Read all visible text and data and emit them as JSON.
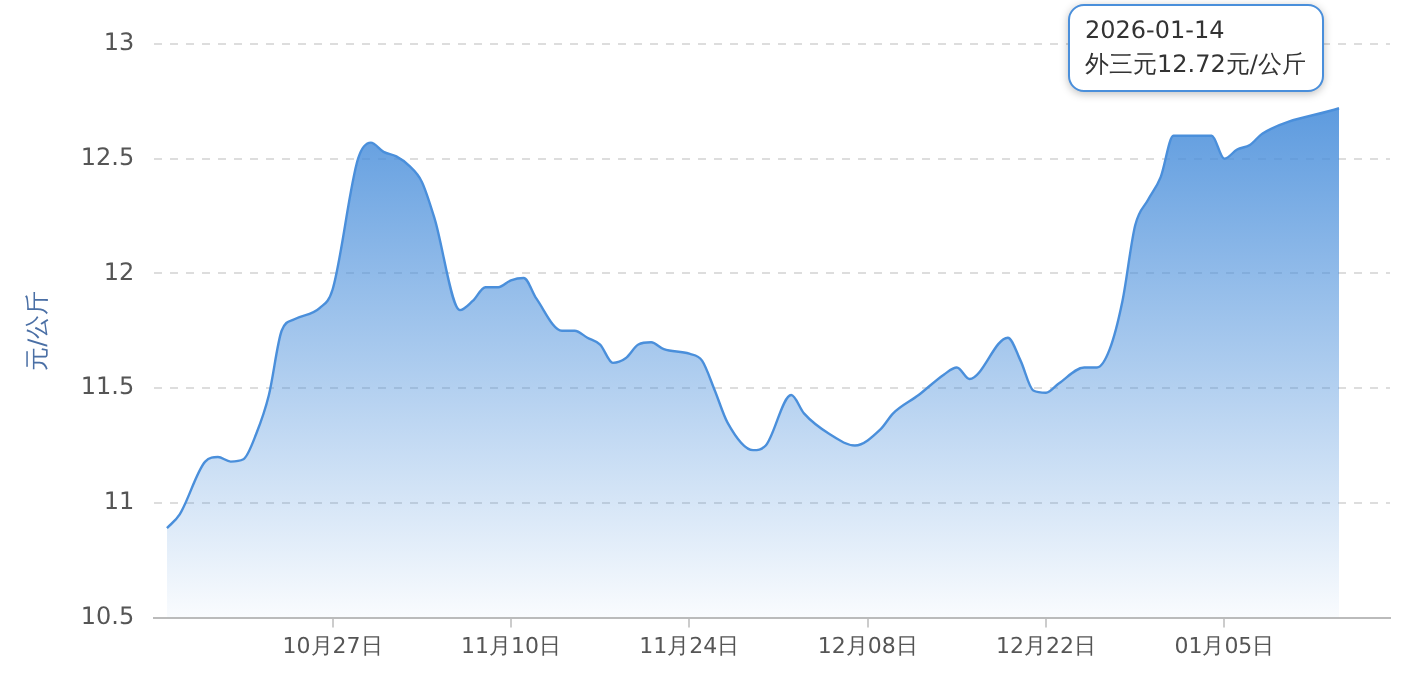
{
  "chart_data": {
    "type": "area",
    "ylabel": "元/公斤",
    "annotations": [
      {
        "text": "2026-01-14\n外三元12.72元/公斤",
        "x": "2026-01-14",
        "y": 12.72
      }
    ],
    "x": [
      "2025-10-14",
      "2025-10-15",
      "2025-10-17",
      "2025-10-18",
      "2025-10-19",
      "2025-10-20",
      "2025-10-21",
      "2025-10-22",
      "2025-10-23",
      "2025-10-24",
      "2025-10-26",
      "2025-10-27",
      "2025-10-29",
      "2025-10-30",
      "2025-10-31",
      "2025-11-01",
      "2025-11-02",
      "2025-11-03",
      "2025-11-04",
      "2025-11-06",
      "2025-11-07",
      "2025-11-08",
      "2025-11-09",
      "2025-11-10",
      "2025-11-11",
      "2025-11-12",
      "2025-11-14",
      "2025-11-15",
      "2025-11-16",
      "2025-11-17",
      "2025-11-18",
      "2025-11-19",
      "2025-11-20",
      "2025-11-21",
      "2025-11-22",
      "2025-11-24",
      "2025-11-25",
      "2025-11-26",
      "2025-11-27",
      "2025-11-29",
      "2025-11-30",
      "2025-12-02",
      "2025-12-03",
      "2025-12-05",
      "2025-12-07",
      "2025-12-09",
      "2025-12-10",
      "2025-12-12",
      "2025-12-14",
      "2025-12-15",
      "2025-12-16",
      "2025-12-19",
      "2025-12-20",
      "2025-12-21",
      "2025-12-22",
      "2025-12-23",
      "2025-12-25",
      "2025-12-26",
      "2025-12-27",
      "2025-12-28",
      "2025-12-29",
      "2025-12-30",
      "2025-12-31",
      "2026-01-01",
      "2026-01-04",
      "2026-01-05",
      "2026-01-06",
      "2026-01-07",
      "2026-01-08",
      "2026-01-14"
    ],
    "series": [
      {
        "color": "#4a8fdb",
        "values": [
          10.89,
          10.95,
          11.18,
          11.2,
          11.18,
          11.19,
          11.3,
          11.47,
          11.75,
          11.8,
          11.85,
          11.93,
          12.5,
          12.57,
          12.53,
          12.51,
          12.47,
          12.4,
          12.24,
          11.84,
          11.88,
          11.94,
          11.94,
          11.97,
          11.98,
          11.89,
          11.75,
          11.75,
          11.72,
          11.69,
          11.61,
          11.63,
          11.69,
          11.7,
          11.67,
          11.65,
          11.62,
          11.49,
          11.35,
          11.23,
          11.25,
          11.47,
          11.39,
          11.3,
          11.25,
          11.32,
          11.39,
          11.47,
          11.56,
          11.59,
          11.54,
          11.72,
          11.62,
          11.49,
          11.48,
          11.52,
          11.59,
          11.59,
          11.67,
          11.88,
          12.21,
          12.32,
          12.42,
          12.6,
          12.6,
          12.5,
          12.54,
          12.56,
          12.61,
          12.72
        ]
      }
    ],
    "xlim": [
      "2025-10-13",
      "2026-01-18"
    ],
    "xticks": [
      {
        "value": "2025-10-27",
        "label": "10月27日"
      },
      {
        "value": "2025-11-10",
        "label": "11月10日"
      },
      {
        "value": "2025-11-24",
        "label": "11月24日"
      },
      {
        "value": "2025-12-08",
        "label": "12月08日"
      },
      {
        "value": "2025-12-22",
        "label": "12月22日"
      },
      {
        "value": "2026-01-05",
        "label": "01月05日"
      }
    ],
    "ylim": [
      10.5,
      13
    ],
    "yticks": [
      10.5,
      11,
      11.5,
      12,
      12.5,
      13
    ],
    "grid": "y",
    "legend": false,
    "marker": "none",
    "line_style": "solid"
  }
}
